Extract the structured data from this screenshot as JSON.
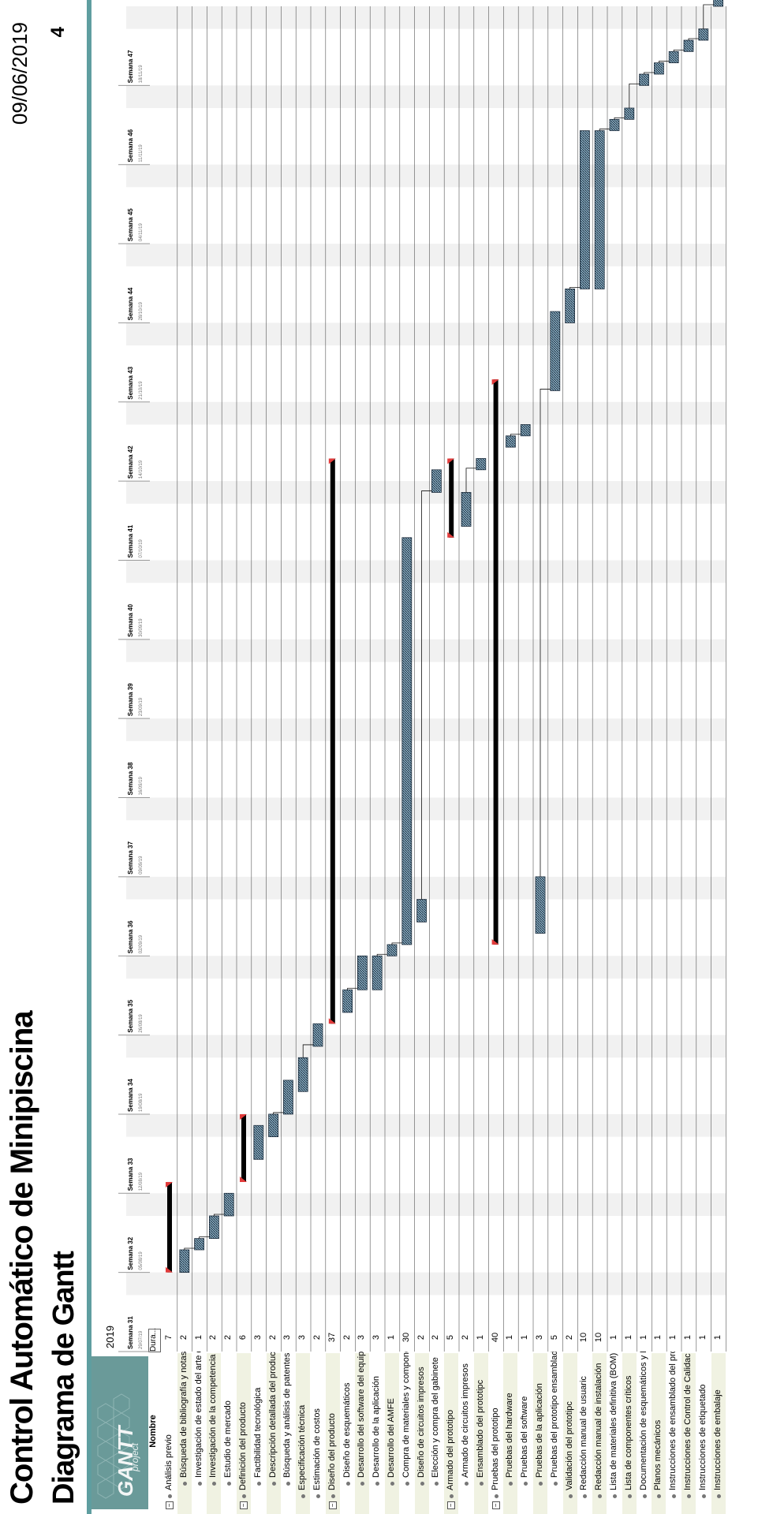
{
  "header": {
    "title": "Control Automático de Minipiscina",
    "date": "09/06/2019",
    "subtitle": "Diagrama de Gantt",
    "page_number": "4"
  },
  "logo": {
    "main": "GANTT",
    "sub": "project"
  },
  "table": {
    "name_header": "Nombre",
    "duration_header": "Dura...",
    "year": "2019"
  },
  "colors": {
    "accent": "#5f9ea0",
    "logo_panel": "#6a9a99",
    "row_shade": "#f0f2e2",
    "week_shade": "#f1f1f1",
    "task_bar": "#8eb4c9",
    "summary_bar": "#000000",
    "milestone": "#e23b3b"
  },
  "chart_data": {
    "type": "gantt",
    "weeks": [
      {
        "label": "Semana 31",
        "date": "29/07/19"
      },
      {
        "label": "Semana 32",
        "date": "05/08/19"
      },
      {
        "label": "Semana 33",
        "date": "12/08/19"
      },
      {
        "label": "Semana 34",
        "date": "19/08/19"
      },
      {
        "label": "Semana 35",
        "date": "26/08/19"
      },
      {
        "label": "Semana 36",
        "date": "02/09/19"
      },
      {
        "label": "Semana 37",
        "date": "09/09/19"
      },
      {
        "label": "Semana 38",
        "date": "16/09/19"
      },
      {
        "label": "Semana 39",
        "date": "23/09/19"
      },
      {
        "label": "Semana 40",
        "date": "30/09/19"
      },
      {
        "label": "Semana 41",
        "date": "07/10/19"
      },
      {
        "label": "Semana 42",
        "date": "14/10/19"
      },
      {
        "label": "Semana 43",
        "date": "21/10/19"
      },
      {
        "label": "Semana 44",
        "date": "28/10/19"
      },
      {
        "label": "Semana 45",
        "date": "04/11/19"
      },
      {
        "label": "Semana 46",
        "date": "11/11/19"
      },
      {
        "label": "Semana 47",
        "date": "18/11/19"
      }
    ],
    "tasks": [
      {
        "name": "Análisis previo",
        "duration": "7",
        "level": 0,
        "summary": true,
        "start": "05/08/19",
        "end": "12/08/19"
      },
      {
        "name": "Búsqueda de bibliografía y notas de aplicació",
        "duration": "2",
        "level": 1,
        "start": "05/08/19",
        "end": "06/08/19"
      },
      {
        "name": "Investigación de estado del arte de las tecnologías a utiliza",
        "duration": "1",
        "level": 1,
        "start": "07/08/19",
        "end": "07/08/19"
      },
      {
        "name": "Investigación de la competencia",
        "duration": "2",
        "level": 1,
        "start": "08/08/19",
        "end": "09/08/19"
      },
      {
        "name": "Estudio de mercado",
        "duration": "2",
        "level": 1,
        "start": "10/08/19",
        "end": "11/08/19"
      },
      {
        "name": "Definición del producto",
        "duration": "6",
        "level": 0,
        "summary": true,
        "start": "13/08/19",
        "end": "18/08/19"
      },
      {
        "name": "Factibilidad tecnológica",
        "duration": "3",
        "level": 1,
        "start": "15/08/19",
        "end": "17/08/19"
      },
      {
        "name": "Descripción detallada del productc",
        "duration": "2",
        "level": 1,
        "start": "17/08/19",
        "end": "18/08/19"
      },
      {
        "name": "Búsqueda y análisis de patentes y normas de aplicació",
        "duration": "3",
        "level": 1,
        "start": "19/08/19",
        "end": "21/08/19"
      },
      {
        "name": "Especificación técnica",
        "duration": "3",
        "level": 0,
        "start": "21/08/19",
        "end": "23/08/19"
      },
      {
        "name": "Estimación de costos",
        "duration": "2",
        "level": 0,
        "start": "25/08/19",
        "end": "26/08/19"
      },
      {
        "name": "Diseño del producto",
        "duration": "37",
        "level": 0,
        "summary": true,
        "start": "27/08/19",
        "end": "15/10/19"
      },
      {
        "name": "Diseño de esquemáticos",
        "duration": "2",
        "level": 1,
        "start": "28/08/19",
        "end": "29/08/19"
      },
      {
        "name": "Desarrollo del software del equipo",
        "duration": "3",
        "level": 1,
        "start": "30/08/19",
        "end": "01/09/19"
      },
      {
        "name": "Desarrollo de la aplicación",
        "duration": "3",
        "level": 1,
        "start": "30/08/19",
        "end": "01/09/19"
      },
      {
        "name": "Desarrollo del AMFE",
        "duration": "1",
        "level": 1,
        "start": "02/09/19",
        "end": "02/09/19"
      },
      {
        "name": "Compra de materiales y componentes",
        "duration": "30",
        "level": 1,
        "start": "03/09/19",
        "end": "08/10/19"
      },
      {
        "name": "Diseño de circuitos impresos",
        "duration": "2",
        "level": 1,
        "start": "05/09/19",
        "end": "06/09/19"
      },
      {
        "name": "Elección y compra del gabinete",
        "duration": "2",
        "level": 1,
        "start": "13/10/19",
        "end": "14/10/19"
      },
      {
        "name": "Armado del prototipo",
        "duration": "5",
        "level": 0,
        "summary": true,
        "start": "09/10/19",
        "end": "15/10/19"
      },
      {
        "name": "Armado de circuitos impresos",
        "duration": "2",
        "level": 1,
        "start": "10/10/19",
        "end": "12/10/19"
      },
      {
        "name": "Ensamblado del prototipc",
        "duration": "1",
        "level": 1,
        "start": "15/10/19",
        "end": "15/10/19"
      },
      {
        "name": "Pruebas del prototipo",
        "duration": "40",
        "level": 0,
        "summary": true,
        "start": "03/09/19",
        "end": "22/10/19"
      },
      {
        "name": "Pruebas del hardware",
        "duration": "1",
        "level": 1,
        "start": "17/10/19",
        "end": "17/10/19"
      },
      {
        "name": "Pruebas del software",
        "duration": "1",
        "level": 1,
        "start": "18/10/19",
        "end": "18/10/19"
      },
      {
        "name": "Pruebas de la aplicación",
        "duration": "3",
        "level": 1,
        "start": "04/09/19",
        "end": "08/09/19"
      },
      {
        "name": "Pruebas del prototipo ensamblado",
        "duration": "5",
        "level": 1,
        "start": "22/10/19",
        "end": "28/10/19"
      },
      {
        "name": "Validación del prototipc",
        "duration": "2",
        "level": 0,
        "start": "28/10/19",
        "end": "30/10/19"
      },
      {
        "name": "Redacción manual de usuaric",
        "duration": "10",
        "level": 0,
        "start": "31/10/19",
        "end": "13/11/19"
      },
      {
        "name": "Redacción manual de instalación",
        "duration": "10",
        "level": 0,
        "start": "31/10/19",
        "end": "13/11/19"
      },
      {
        "name": "Lista de materiales definitiva (BOM)",
        "duration": "1",
        "level": 0,
        "start": "14/11/19",
        "end": "14/11/19"
      },
      {
        "name": "Lista de componentes críticos",
        "duration": "1",
        "level": 0,
        "start": "15/11/19",
        "end": "15/11/19"
      },
      {
        "name": "Documentación de esquemáticos y PCB",
        "duration": "1",
        "level": 0,
        "start": "18/11/19",
        "end": "18/11/19"
      },
      {
        "name": "Planos mecánicos",
        "duration": "1",
        "level": 0,
        "start": "19/11/19",
        "end": "19/11/19"
      },
      {
        "name": "Instrucciones de ensamblado del productc",
        "duration": "1",
        "level": 0,
        "start": "20/11/19",
        "end": "20/11/19"
      },
      {
        "name": "Instrucciones de Control de Calidac",
        "duration": "1",
        "level": 0,
        "start": "21/11/19",
        "end": "21/11/19"
      },
      {
        "name": "Instrucciones de etiquetado",
        "duration": "1",
        "level": 0,
        "start": "22/11/19",
        "end": "22/11/19"
      },
      {
        "name": "Instrucciones de embalaje",
        "duration": "1",
        "level": 0,
        "start": "25/11/19",
        "end": "25/11/19"
      }
    ]
  }
}
